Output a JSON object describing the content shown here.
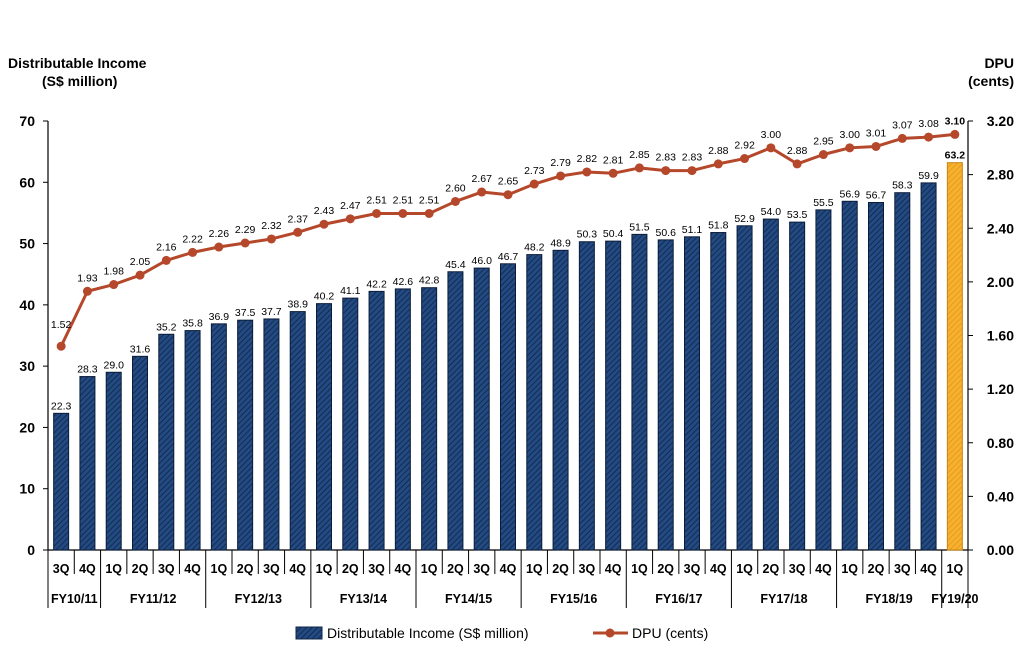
{
  "chart_data": {
    "type": "bar",
    "left_axis_title": [
      "Distributable Income",
      "(S$ million)"
    ],
    "right_axis_title": [
      "DPU",
      "(cents)"
    ],
    "left_ylim": [
      0,
      70
    ],
    "left_ticks": [
      "0",
      "10",
      "20",
      "30",
      "40",
      "50",
      "60",
      "70"
    ],
    "right_ylim": [
      0,
      3.2
    ],
    "right_ticks": [
      "0.00",
      "0.40",
      "0.80",
      "1.20",
      "1.60",
      "2.00",
      "2.40",
      "2.80",
      "3.20"
    ],
    "categories": [
      "3Q",
      "4Q",
      "1Q",
      "2Q",
      "3Q",
      "4Q",
      "1Q",
      "2Q",
      "3Q",
      "4Q",
      "1Q",
      "2Q",
      "3Q",
      "4Q",
      "1Q",
      "2Q",
      "3Q",
      "4Q",
      "1Q",
      "2Q",
      "3Q",
      "4Q",
      "1Q",
      "2Q",
      "3Q",
      "4Q",
      "1Q",
      "2Q",
      "3Q",
      "4Q",
      "1Q",
      "2Q",
      "3Q",
      "4Q",
      "1Q"
    ],
    "fiscal_years": [
      {
        "label": "FY10/11",
        "count": 2
      },
      {
        "label": "FY11/12",
        "count": 4
      },
      {
        "label": "FY12/13",
        "count": 4
      },
      {
        "label": "FY13/14",
        "count": 4
      },
      {
        "label": "FY14/15",
        "count": 4
      },
      {
        "label": "FY15/16",
        "count": 4
      },
      {
        "label": "FY16/17",
        "count": 4
      },
      {
        "label": "FY17/18",
        "count": 4
      },
      {
        "label": "FY18/19",
        "count": 4
      },
      {
        "label": "FY19/20",
        "count": 1
      }
    ],
    "series": [
      {
        "name": "Distributable Income (S$ million)",
        "type": "bar",
        "axis": "left",
        "values": [
          22.3,
          28.3,
          29.0,
          31.6,
          35.2,
          35.8,
          36.9,
          37.5,
          37.7,
          38.9,
          40.2,
          41.1,
          42.2,
          42.6,
          42.8,
          45.4,
          46.0,
          46.7,
          48.2,
          48.9,
          50.3,
          50.4,
          51.5,
          50.6,
          51.1,
          51.8,
          52.9,
          54.0,
          53.5,
          55.5,
          56.9,
          56.7,
          58.3,
          59.9,
          63.2
        ],
        "labels": [
          "22.3",
          "28.3",
          "29.0",
          "31.6",
          "35.2",
          "35.8",
          "36.9",
          "37.5",
          "37.7",
          "38.9",
          "40.2",
          "41.1",
          "42.2",
          "42.6",
          "42.8",
          "45.4",
          "46.0",
          "46.7",
          "48.2",
          "48.9",
          "50.3",
          "50.4",
          "51.5",
          "50.6",
          "51.1",
          "51.8",
          "52.9",
          "54.0",
          "53.5",
          "55.5",
          "56.9",
          "56.7",
          "58.3",
          "59.9",
          "63.2"
        ],
        "color": "#1f3f73",
        "highlight_color": "#f5a623"
      },
      {
        "name": "DPU (cents)",
        "type": "line",
        "axis": "right",
        "values": [
          1.52,
          1.93,
          1.98,
          2.05,
          2.16,
          2.22,
          2.26,
          2.29,
          2.32,
          2.37,
          2.43,
          2.47,
          2.51,
          2.51,
          2.51,
          2.6,
          2.67,
          2.65,
          2.73,
          2.79,
          2.82,
          2.81,
          2.85,
          2.83,
          2.83,
          2.88,
          2.92,
          3.0,
          2.88,
          2.95,
          3.0,
          3.01,
          3.07,
          3.08,
          3.1
        ],
        "labels": [
          "1.52",
          "1.93",
          "1.98",
          "2.05",
          "2.16",
          "2.22",
          "2.26",
          "2.29",
          "2.32",
          "2.37",
          "2.43",
          "2.47",
          "2.51",
          "2.51",
          "2.51",
          "2.60",
          "2.67",
          "2.65",
          "2.73",
          "2.79",
          "2.82",
          "2.81",
          "2.85",
          "2.83",
          "2.83",
          "2.88",
          "2.92",
          "3.00",
          "2.88",
          "2.95",
          "3.00",
          "3.01",
          "3.07",
          "3.08",
          "3.10"
        ],
        "color": "#b5472a"
      }
    ],
    "legend": {
      "position": "bottom-center",
      "items": [
        "Distributable Income (S$ million)",
        "DPU (cents)"
      ]
    }
  }
}
